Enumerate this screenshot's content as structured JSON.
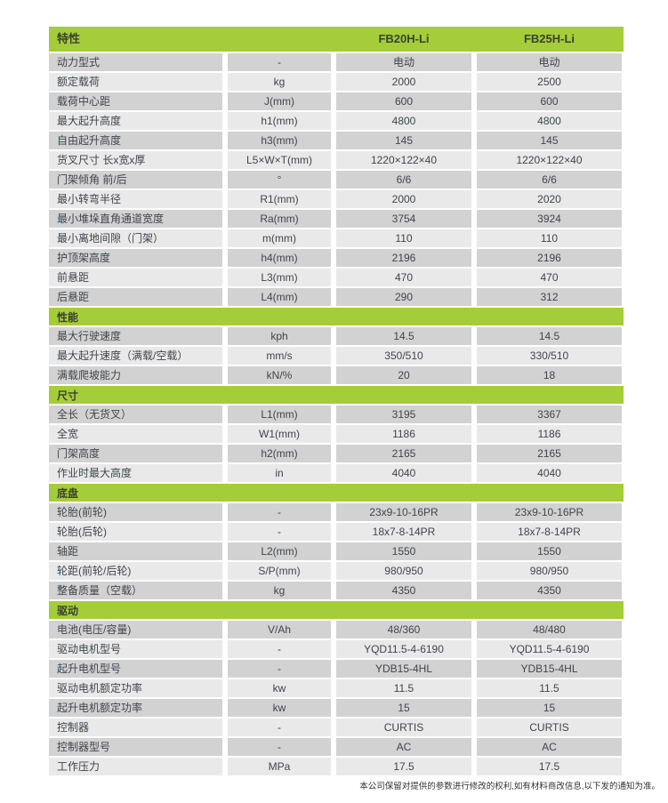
{
  "colors": {
    "accent_green": "#a5cd3a",
    "row_dark": "#d2d2d2",
    "row_light": "#e9e9e9",
    "text": "#40454a"
  },
  "table": {
    "header": {
      "feature": "特性",
      "model1": "FB20H-Li",
      "model2": "FB25H-Li"
    },
    "sections": [
      {
        "title": null,
        "rows": [
          [
            "动力型式",
            "-",
            "电动",
            "电动"
          ],
          [
            "额定载荷",
            "kg",
            "2000",
            "2500"
          ],
          [
            "载荷中心距",
            "J(mm)",
            "600",
            "600"
          ],
          [
            "最大起升高度",
            "h1(mm)",
            "4800",
            "4800"
          ],
          [
            "自由起升高度",
            "h3(mm)",
            "145",
            "145"
          ],
          [
            "货叉尺寸 长x宽x厚",
            "L5×W×T(mm)",
            "1220×122×40",
            "1220×122×40"
          ],
          [
            "门架倾角 前/后",
            "°",
            "6/6",
            "6/6"
          ],
          [
            "最小转弯半径",
            "R1(mm)",
            "2000",
            "2020"
          ],
          [
            "最小堆垛直角通道宽度",
            "Ra(mm)",
            "3754",
            "3924"
          ],
          [
            "最小离地间隙（门架）",
            "m(mm)",
            "110",
            "110"
          ],
          [
            "护顶架高度",
            "h4(mm)",
            "2196",
            "2196"
          ],
          [
            "前悬距",
            "L3(mm)",
            "470",
            "470"
          ],
          [
            "后悬距",
            "L4(mm)",
            "290",
            "312"
          ]
        ]
      },
      {
        "title": "性能",
        "rows": [
          [
            "最大行驶速度",
            "kph",
            "14.5",
            "14.5"
          ],
          [
            "最大起升速度（满载/空载）",
            "mm/s",
            "350/510",
            "330/510"
          ],
          [
            "满载爬坡能力",
            "kN/%",
            "20",
            "18"
          ]
        ]
      },
      {
        "title": "尺寸",
        "rows": [
          [
            "全长（无货叉）",
            "L1(mm)",
            "3195",
            "3367"
          ],
          [
            "全宽",
            "W1(mm)",
            "1186",
            "1186"
          ],
          [
            "门架高度",
            "h2(mm)",
            "2165",
            "2165"
          ],
          [
            "作业时最大高度",
            "in",
            "4040",
            "4040"
          ]
        ]
      },
      {
        "title": "底盘",
        "rows": [
          [
            "轮胎(前轮)",
            "-",
            "23x9-10-16PR",
            "23x9-10-16PR"
          ],
          [
            "轮胎(后轮)",
            "-",
            "18x7-8-14PR",
            "18x7-8-14PR"
          ],
          [
            "轴距",
            "L2(mm)",
            "1550",
            "1550"
          ],
          [
            "轮距(前轮/后轮)",
            "S/P(mm)",
            "980/950",
            "980/950"
          ],
          [
            "整备质量（空载）",
            "kg",
            "4350",
            "4350"
          ]
        ]
      },
      {
        "title": "驱动",
        "rows": [
          [
            "电池(电压/容量)",
            "V/Ah",
            "48/360",
            "48/480"
          ],
          [
            "驱动电机型号",
            "-",
            "YQD11.5-4-6190",
            "YQD11.5-4-6190"
          ],
          [
            "起升电机型号",
            "-",
            "YDB15-4HL",
            "YDB15-4HL"
          ],
          [
            "驱动电机额定功率",
            "kw",
            "11.5",
            "11.5"
          ],
          [
            "起升电机额定功率",
            "kw",
            "15",
            "15"
          ],
          [
            "控制器",
            "-",
            "CURTIS",
            "CURTIS"
          ],
          [
            "控制器型号",
            "-",
            "AC",
            "AC"
          ],
          [
            "工作压力",
            "MPa",
            "17.5",
            "17.5"
          ]
        ]
      }
    ]
  },
  "footer": {
    "disclaimer": "本公司保留对提供的参数进行修改的权利,如有材料商改信息,以下发的通知为准。"
  }
}
